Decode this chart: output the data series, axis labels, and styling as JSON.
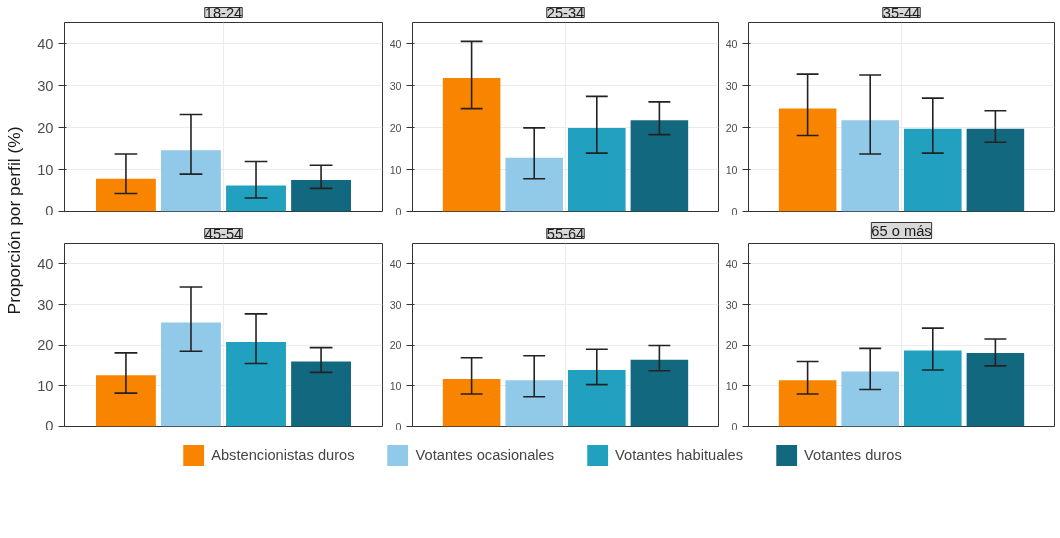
{
  "chart_data": [
    {
      "type": "bar",
      "title": "18-24",
      "ylabel": "Proporción por perfil (%)",
      "categories": [
        null
      ],
      "ylim": [
        0,
        45
      ],
      "yticks": [
        0,
        10,
        20,
        30,
        40
      ],
      "grid": true,
      "legend": "bottom",
      "series": [
        {
          "name": "Abstencionistas duros",
          "color": "#f98400",
          "values": [
            7.8
          ],
          "errors": [
            [
              4.3,
              13.7
            ]
          ]
        },
        {
          "name": "Votantes ocasionales",
          "color": "#91c9e8",
          "values": [
            14.6
          ],
          "errors": [
            [
              8.9,
              23.1
            ]
          ]
        },
        {
          "name": "Votantes habituales",
          "color": "#21a0c0",
          "values": [
            6.2
          ],
          "errors": [
            [
              3.2,
              11.9
            ]
          ]
        },
        {
          "name": "Votantes duros",
          "color": "#12687f",
          "values": [
            7.5
          ],
          "errors": [
            [
              5.5,
              11.0
            ]
          ]
        }
      ]
    },
    {
      "type": "bar",
      "title": "25-34",
      "categories": [
        null
      ],
      "ylim": [
        0,
        45
      ],
      "yticks": [
        0,
        10,
        20,
        30,
        40
      ],
      "grid": true,
      "series": [
        {
          "name": "Abstencionistas duros",
          "color": "#f98400",
          "values": [
            31.8
          ],
          "errors": [
            [
              24.5,
              40.5
            ]
          ]
        },
        {
          "name": "Votantes ocasionales",
          "color": "#91c9e8",
          "values": [
            12.8
          ],
          "errors": [
            [
              7.8,
              19.9
            ]
          ]
        },
        {
          "name": "Votantes habituales",
          "color": "#21a0c0",
          "values": [
            19.9
          ],
          "errors": [
            [
              13.9,
              27.4
            ]
          ]
        },
        {
          "name": "Votantes duros",
          "color": "#12687f",
          "values": [
            21.7
          ],
          "errors": [
            [
              18.3,
              26.1
            ]
          ]
        }
      ]
    },
    {
      "type": "bar",
      "title": "35-44",
      "categories": [
        null
      ],
      "ylim": [
        0,
        45
      ],
      "yticks": [
        0,
        10,
        20,
        30,
        40
      ],
      "grid": true,
      "series": [
        {
          "name": "Abstencionistas duros",
          "color": "#f98400",
          "values": [
            24.5
          ],
          "errors": [
            [
              18.1,
              32.7
            ]
          ]
        },
        {
          "name": "Votantes ocasionales",
          "color": "#91c9e8",
          "values": [
            21.7
          ],
          "errors": [
            [
              13.7,
              32.5
            ]
          ]
        },
        {
          "name": "Votantes habituales",
          "color": "#21a0c0",
          "values": [
            19.7
          ],
          "errors": [
            [
              13.9,
              27.0
            ]
          ]
        },
        {
          "name": "Votantes duros",
          "color": "#12687f",
          "values": [
            19.7
          ],
          "errors": [
            [
              16.5,
              24.0
            ]
          ]
        }
      ]
    },
    {
      "type": "bar",
      "title": "45-54",
      "categories": [
        null
      ],
      "ylim": [
        0,
        45
      ],
      "yticks": [
        0,
        10,
        20,
        30,
        40
      ],
      "grid": true,
      "series": [
        {
          "name": "Abstencionistas duros",
          "color": "#f98400",
          "values": [
            12.6
          ],
          "errors": [
            [
              8.2,
              18.1
            ]
          ]
        },
        {
          "name": "Votantes ocasionales",
          "color": "#91c9e8",
          "values": [
            25.6
          ],
          "errors": [
            [
              18.5,
              34.3
            ]
          ]
        },
        {
          "name": "Votantes habituales",
          "color": "#21a0c0",
          "values": [
            20.8
          ],
          "errors": [
            [
              15.5,
              27.7
            ]
          ]
        },
        {
          "name": "Votantes duros",
          "color": "#12687f",
          "values": [
            16.0
          ],
          "errors": [
            [
              13.3,
              19.4
            ]
          ]
        }
      ]
    },
    {
      "type": "bar",
      "title": "55-64",
      "categories": [
        null
      ],
      "ylim": [
        0,
        45
      ],
      "yticks": [
        0,
        10,
        20,
        30,
        40
      ],
      "grid": true,
      "series": [
        {
          "name": "Abstencionistas duros",
          "color": "#f98400",
          "values": [
            11.7
          ],
          "errors": [
            [
              8.0,
              16.9
            ]
          ]
        },
        {
          "name": "Votantes ocasionales",
          "color": "#91c9e8",
          "values": [
            11.4
          ],
          "errors": [
            [
              7.3,
              17.4
            ]
          ]
        },
        {
          "name": "Votantes habituales",
          "color": "#21a0c0",
          "values": [
            13.9
          ],
          "errors": [
            [
              10.3,
              19.0
            ]
          ]
        },
        {
          "name": "Votantes duros",
          "color": "#12687f",
          "values": [
            16.4
          ],
          "errors": [
            [
              13.7,
              19.9
            ]
          ]
        }
      ]
    },
    {
      "type": "bar",
      "title": "65 o más",
      "categories": [
        null
      ],
      "ylim": [
        0,
        45
      ],
      "yticks": [
        0,
        10,
        20,
        30,
        40
      ],
      "grid": true,
      "series": [
        {
          "name": "Abstencionistas duros",
          "color": "#f98400",
          "values": [
            11.4
          ],
          "errors": [
            [
              8.0,
              16.0
            ]
          ]
        },
        {
          "name": "Votantes ocasionales",
          "color": "#91c9e8",
          "values": [
            13.5
          ],
          "errors": [
            [
              9.1,
              19.2
            ]
          ]
        },
        {
          "name": "Votantes habituales",
          "color": "#21a0c0",
          "values": [
            18.7
          ],
          "errors": [
            [
              13.9,
              24.2
            ]
          ]
        },
        {
          "name": "Votantes duros",
          "color": "#12687f",
          "values": [
            18.1
          ],
          "errors": [
            [
              14.9,
              21.5
            ]
          ]
        }
      ]
    }
  ]
}
